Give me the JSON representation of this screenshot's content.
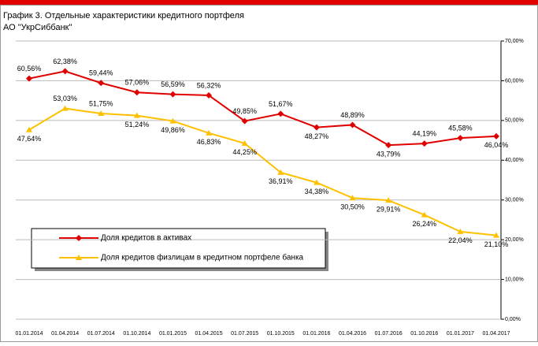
{
  "chart_data": {
    "type": "line",
    "title": "График 3. Отдельные характеристики кредитного портфеля",
    "subtitle": "АО \"УкрСиббанк\"",
    "categories": [
      "01.01.2014",
      "01.04.2014",
      "01.07.2014",
      "01.10.2014",
      "01.01.2015",
      "01.04.2015",
      "01.07.2015",
      "01.10.2015",
      "01.01.2016",
      "01.04.2016",
      "01.07.2016",
      "01.10.2016",
      "01.01.2017",
      "01.04.2017"
    ],
    "series": [
      {
        "name": "Доля кредитов в активах",
        "color": "#e00000",
        "values": [
          60.56,
          62.38,
          59.44,
          57.06,
          56.59,
          56.32,
          49.85,
          51.67,
          48.27,
          48.89,
          43.79,
          44.19,
          45.58,
          46.04
        ],
        "value_labels": [
          "60,56%",
          "62,38%",
          "59,44%",
          "57,06%",
          "56,59%",
          "56,32%",
          "49,85%",
          "51,67%",
          "48,27%",
          "48,89%",
          "43,79%",
          "44,19%",
          "45,58%",
          "46,04%"
        ]
      },
      {
        "name": "Доля кредитов физлицам в кредитном портфеле банка",
        "color": "#ffc000",
        "values": [
          47.64,
          53.03,
          51.75,
          51.24,
          49.86,
          46.83,
          44.25,
          36.91,
          34.38,
          30.5,
          29.91,
          26.24,
          22.04,
          21.1
        ],
        "value_labels": [
          "47,64%",
          "53,03%",
          "51,75%",
          "51,24%",
          "49,86%",
          "46,83%",
          "44,25%",
          "36,91%",
          "34,38%",
          "30,50%",
          "29,91%",
          "26,24%",
          "22,04%",
          "21,10%"
        ]
      }
    ],
    "ylim": [
      0,
      70
    ],
    "yticks": [
      {
        "value": 0,
        "label": "0,00%"
      },
      {
        "value": 10,
        "label": "10,00%"
      },
      {
        "value": 20,
        "label": "20,00%"
      },
      {
        "value": 30,
        "label": "30,00%"
      },
      {
        "value": 40,
        "label": "40,00%"
      },
      {
        "value": 50,
        "label": "50,00%"
      },
      {
        "value": 60,
        "label": "60,00%"
      },
      {
        "value": 70,
        "label": "70,00%"
      }
    ],
    "grid": true
  }
}
